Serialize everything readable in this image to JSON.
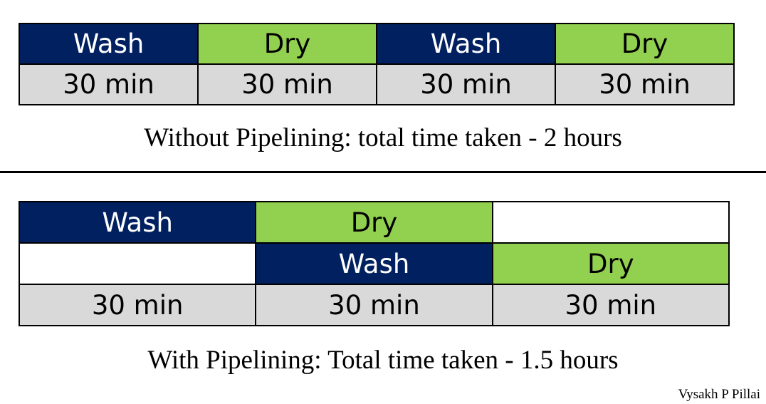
{
  "colors": {
    "wash": "#002060",
    "dry": "#92d050",
    "time": "#d9d9d9",
    "border": "#000000"
  },
  "without_pipelining": {
    "stages": [
      "Wash",
      "Dry",
      "Wash",
      "Dry"
    ],
    "times": [
      "30 min",
      "30 min",
      "30 min",
      "30 min"
    ],
    "caption": "Without Pipelining: total time taken - 2 hours"
  },
  "with_pipelining": {
    "row1": [
      "Wash",
      "Dry",
      ""
    ],
    "row2": [
      "",
      "Wash",
      "Dry"
    ],
    "times": [
      "30 min",
      "30 min",
      "30 min"
    ],
    "caption": "With Pipelining: Total time taken - 1.5 hours"
  },
  "credit": "Vysakh P Pillai"
}
